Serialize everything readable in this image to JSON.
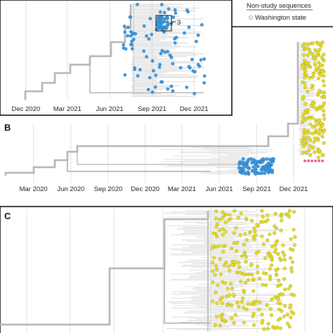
{
  "colors": {
    "panel_border": "#111111",
    "grid": "#d9d9d9",
    "backbone": "#b5b5b5",
    "tree_line": "#c8c8c8",
    "study_blue": "#3d9be0",
    "study_blue_dark": "#1f6fb2",
    "study_yellow": "#e6dd2a",
    "study_yellow_dark": "#a9a114",
    "study_pink": "#e0609a",
    "non_study_fill": "#f2f2f2",
    "non_study_edge": "#9a9a9a"
  },
  "legend": {
    "title": "Non-study sequences",
    "item": "Washington state"
  },
  "chart_data": [
    {
      "panel": "A",
      "type": "scatter",
      "subtype": "time-scaled phylogenetic tree",
      "panel_label": "",
      "x_tick_labels": [
        "Dec 2020",
        "Mar 2021",
        "Jun 2021",
        "Sep 2021",
        "Dec 2021"
      ],
      "x_ticks": [
        "2020-12-01",
        "2021-03-01",
        "2021-06-01",
        "2021-09-01",
        "2021-12-01"
      ],
      "xlim": [
        "2020-10-15",
        "2022-02-15"
      ],
      "grid": true,
      "series": [
        {
          "color": "study_blue",
          "tips": 120,
          "date_range": [
            "2021-07-01",
            "2021-12-31"
          ]
        }
      ],
      "annotations": [
        {
          "text": "3",
          "date": "2021-09-10"
        }
      ]
    },
    {
      "panel": "B",
      "type": "scatter",
      "subtype": "time-scaled phylogenetic tree",
      "panel_label": "B",
      "x_tick_labels": [
        "Mar 2020",
        "Jun 2020",
        "Sep 2020",
        "Dec 2020",
        "Mar 2021",
        "Jun 2021",
        "Sep 2021",
        "Dec 2021"
      ],
      "x_ticks": [
        "2020-03-01",
        "2020-06-01",
        "2020-09-01",
        "2020-12-01",
        "2021-03-01",
        "2021-06-01",
        "2021-09-01",
        "2021-12-01"
      ],
      "xlim": [
        "2019-12-20",
        "2022-03-01"
      ],
      "grid": true,
      "series": [
        {
          "color": "study_blue",
          "tips": 90,
          "date_range": [
            "2021-08-01",
            "2021-10-31"
          ]
        },
        {
          "color": "study_yellow",
          "tips": 170,
          "date_range": [
            "2021-11-15",
            "2022-02-28"
          ]
        },
        {
          "color": "study_pink",
          "tips": 6,
          "date_range": [
            "2021-12-01",
            "2022-01-20"
          ]
        }
      ]
    },
    {
      "panel": "C",
      "type": "scatter",
      "subtype": "time-scaled phylogenetic tree",
      "panel_label": "C",
      "x_tick_labels": [],
      "grid": true,
      "series": [
        {
          "color": "study_yellow",
          "tips": 260
        }
      ]
    }
  ]
}
